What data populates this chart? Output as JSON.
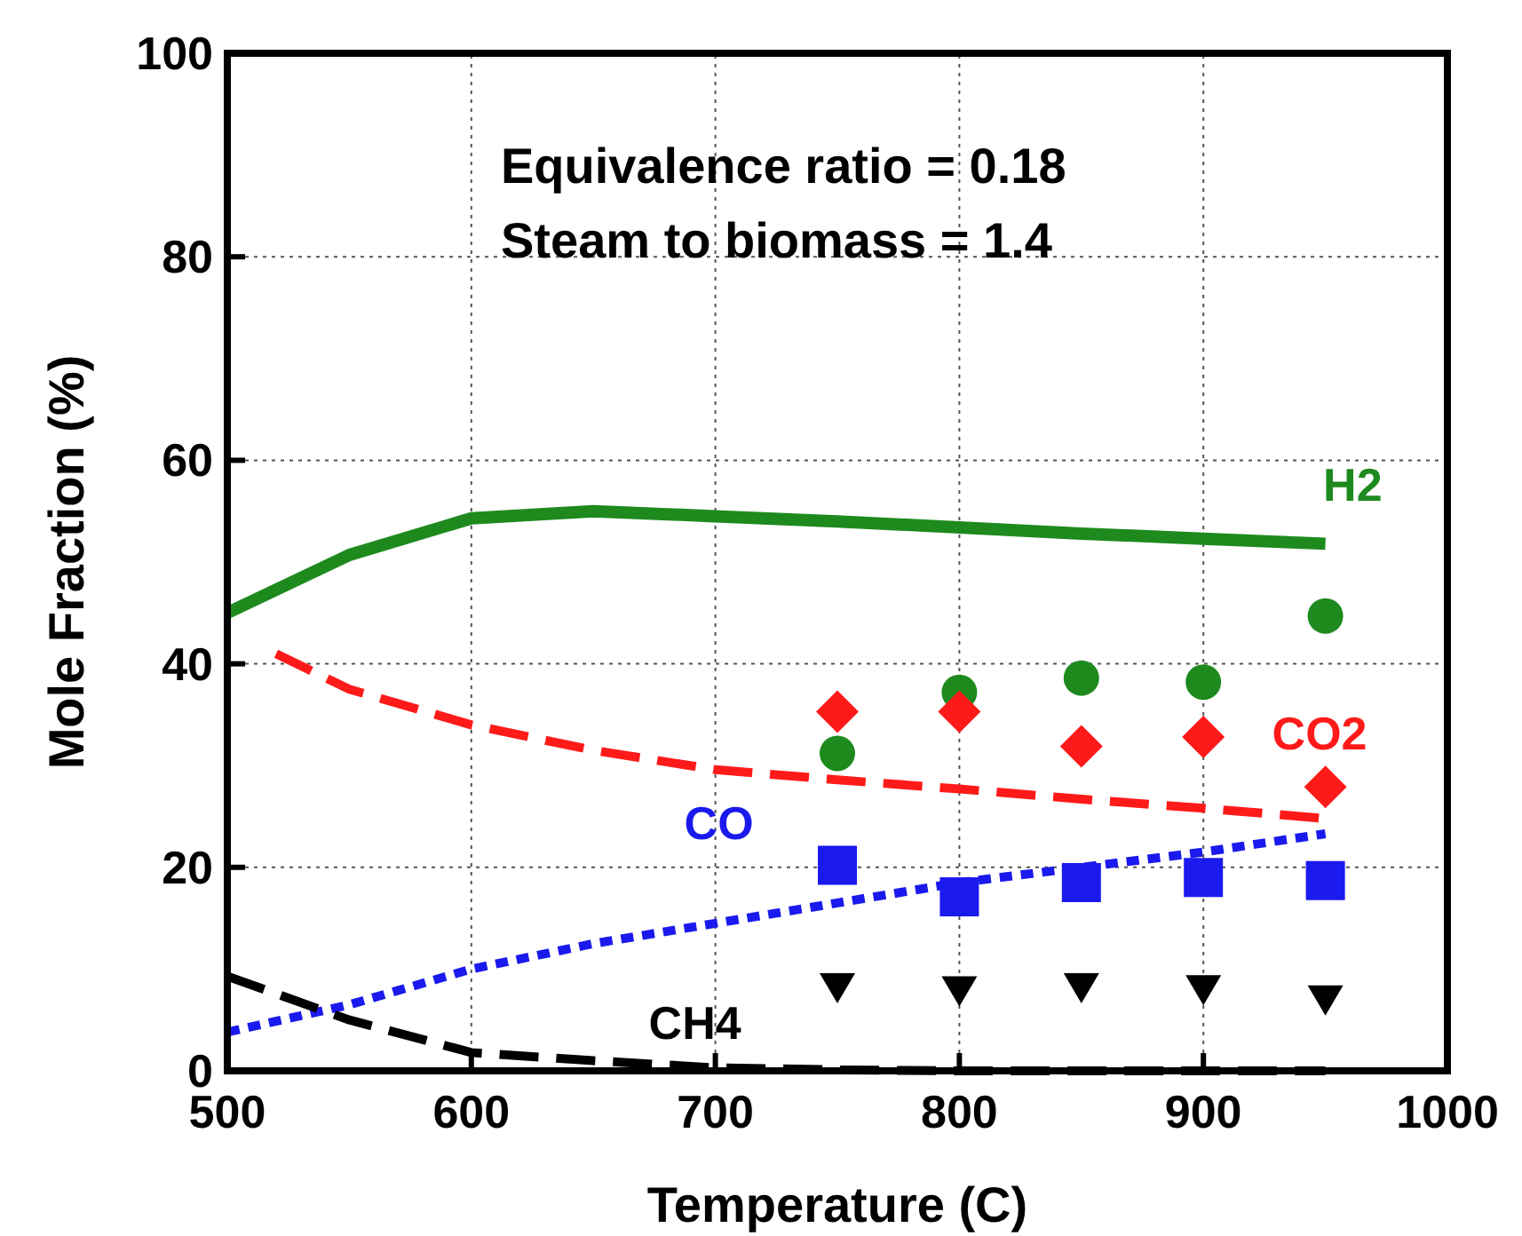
{
  "chart_data": {
    "type": "line",
    "xlabel": "Temperature (C)",
    "ylabel": "Mole Fraction (%)",
    "xlim": [
      500,
      1000
    ],
    "xticks": [
      500,
      600,
      700,
      800,
      900,
      1000
    ],
    "ylim": [
      0,
      100
    ],
    "yticks": [
      0,
      20,
      40,
      60,
      80,
      100
    ],
    "grid": true,
    "annotations": [
      "Equivalence ratio = 0.18",
      "Steam to biomass = 1.4"
    ],
    "series": [
      {
        "name": "H2",
        "color": "#1e8a1e",
        "line_style": "solid",
        "x": [
          500,
          550,
          600,
          650,
          700,
          750,
          800,
          850,
          900,
          950
        ],
        "values": [
          45,
          50.7,
          54.3,
          55,
          54.5,
          54,
          53.4,
          52.8,
          52.3,
          51.8
        ]
      },
      {
        "name": "CO2",
        "color": "#ff1a1a",
        "line_style": "dashed",
        "x": [
          520,
          550,
          600,
          650,
          700,
          750,
          800,
          850,
          900,
          950
        ],
        "values": [
          41,
          37.5,
          34,
          31.5,
          29.6,
          28.6,
          27.7,
          26.7,
          25.8,
          24.8
        ]
      },
      {
        "name": "CO",
        "color": "#1a1aee",
        "line_style": "dotted",
        "x": [
          500,
          550,
          600,
          650,
          700,
          750,
          800,
          850,
          900,
          950
        ],
        "values": [
          3.8,
          6.5,
          10,
          12.5,
          14.5,
          16.5,
          18.5,
          20,
          21.5,
          23.3
        ]
      },
      {
        "name": "CH4",
        "color": "#000000",
        "line_style": "dashed",
        "x": [
          500,
          550,
          600,
          650,
          700,
          750,
          800,
          850,
          900,
          950
        ],
        "values": [
          9.3,
          5,
          1.8,
          1,
          0.3,
          0.1,
          0,
          0,
          0,
          0
        ]
      },
      {
        "type": "scatter",
        "color": "#1e8a1e",
        "marker": "circle",
        "x": [
          750,
          800,
          850,
          900,
          950
        ],
        "values": [
          31.2,
          37.2,
          38.6,
          38.2,
          44.7
        ]
      },
      {
        "type": "scatter",
        "color": "#ff1a1a",
        "marker": "diamond",
        "x": [
          750,
          800,
          850,
          900,
          950
        ],
        "values": [
          35.3,
          35.3,
          31.9,
          32.8,
          27.9
        ]
      },
      {
        "type": "scatter",
        "color": "#1a1aee",
        "marker": "square",
        "x": [
          750,
          800,
          850,
          900,
          950
        ],
        "values": [
          20.2,
          17.1,
          18.5,
          19,
          18.7
        ]
      },
      {
        "type": "scatter",
        "color": "#000000",
        "marker": "triangle",
        "x": [
          750,
          800,
          850,
          900,
          950
        ],
        "values": [
          8.2,
          7.9,
          8.2,
          8,
          7
        ]
      }
    ]
  }
}
